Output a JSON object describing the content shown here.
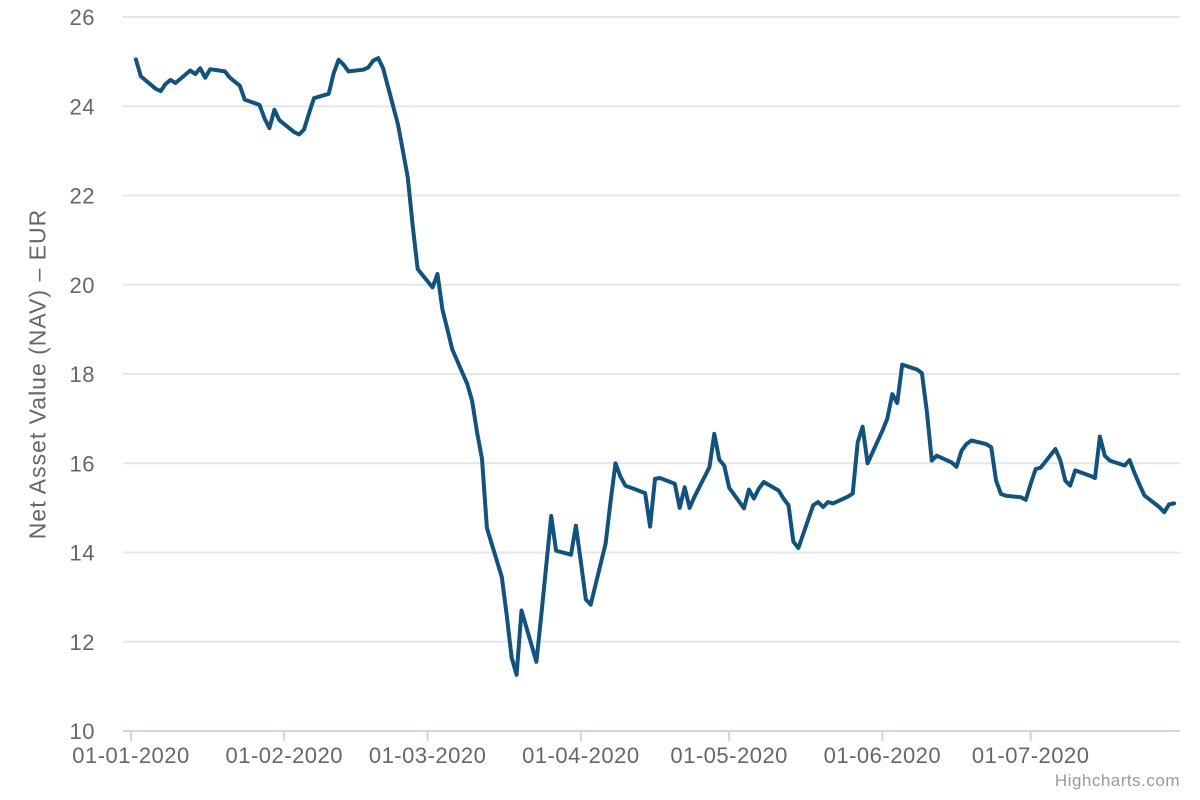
{
  "credits": {
    "label": "Highcharts.com"
  },
  "style": {
    "line_color": "#12537E",
    "grid_color": "#E6E6E6",
    "axis_line_color": "#CCD6EB",
    "label_color": "#666666",
    "credits_color": "#999999",
    "background": "#FFFFFF"
  },
  "chart_data": {
    "type": "line",
    "title": "",
    "xlabel": "",
    "ylabel": "Net Asset Value (NAV) – EUR",
    "ylim": [
      10,
      26
    ],
    "ytick_interval": 2,
    "yticks": [
      10,
      12,
      14,
      16,
      18,
      20,
      22,
      24,
      26
    ],
    "xticks": [
      {
        "date": "2020-01-01",
        "label": "01-01-2020"
      },
      {
        "date": "2020-02-01",
        "label": "01-02-2020"
      },
      {
        "date": "2020-03-01",
        "label": "01-03-2020"
      },
      {
        "date": "2020-04-01",
        "label": "01-04-2020"
      },
      {
        "date": "2020-05-01",
        "label": "01-05-2020"
      },
      {
        "date": "2020-06-01",
        "label": "01-06-2020"
      },
      {
        "date": "2020-07-01",
        "label": "01-07-2020"
      }
    ],
    "grid": true,
    "legend": false,
    "series": [
      {
        "color": "#12537E",
        "data": [
          [
            "2020-01-02",
            25.05
          ],
          [
            "2020-01-03",
            24.67
          ],
          [
            "2020-01-06",
            24.39
          ],
          [
            "2020-01-07",
            24.34
          ],
          [
            "2020-01-08",
            24.5
          ],
          [
            "2020-01-09",
            24.59
          ],
          [
            "2020-01-10",
            24.52
          ],
          [
            "2020-01-13",
            24.8
          ],
          [
            "2020-01-14",
            24.72
          ],
          [
            "2020-01-15",
            24.85
          ],
          [
            "2020-01-16",
            24.64
          ],
          [
            "2020-01-17",
            24.83
          ],
          [
            "2020-01-20",
            24.78
          ],
          [
            "2020-01-21",
            24.64
          ],
          [
            "2020-01-22",
            24.55
          ],
          [
            "2020-01-23",
            24.46
          ],
          [
            "2020-01-24",
            24.15
          ],
          [
            "2020-01-27",
            24.03
          ],
          [
            "2020-01-28",
            23.73
          ],
          [
            "2020-01-29",
            23.51
          ],
          [
            "2020-01-30",
            23.92
          ],
          [
            "2020-01-31",
            23.69
          ],
          [
            "2020-02-03",
            23.42
          ],
          [
            "2020-02-04",
            23.37
          ],
          [
            "2020-02-05",
            23.48
          ],
          [
            "2020-02-06",
            23.84
          ],
          [
            "2020-02-07",
            24.18
          ],
          [
            "2020-02-10",
            24.28
          ],
          [
            "2020-02-11",
            24.74
          ],
          [
            "2020-02-12",
            25.04
          ],
          [
            "2020-02-13",
            24.93
          ],
          [
            "2020-02-14",
            24.78
          ],
          [
            "2020-02-17",
            24.82
          ],
          [
            "2020-02-18",
            24.87
          ],
          [
            "2020-02-19",
            25.02
          ],
          [
            "2020-02-20",
            25.08
          ],
          [
            "2020-02-21",
            24.85
          ],
          [
            "2020-02-24",
            23.6
          ],
          [
            "2020-02-25",
            23.0
          ],
          [
            "2020-02-26",
            22.4
          ],
          [
            "2020-02-27",
            21.3
          ],
          [
            "2020-02-28",
            20.35
          ],
          [
            "2020-03-02",
            19.94
          ],
          [
            "2020-03-03",
            20.24
          ],
          [
            "2020-03-04",
            19.45
          ],
          [
            "2020-03-05",
            19.0
          ],
          [
            "2020-03-06",
            18.55
          ],
          [
            "2020-03-09",
            17.78
          ],
          [
            "2020-03-10",
            17.4
          ],
          [
            "2020-03-11",
            16.7
          ],
          [
            "2020-03-12",
            16.1
          ],
          [
            "2020-03-13",
            14.55
          ],
          [
            "2020-03-16",
            13.45
          ],
          [
            "2020-03-17",
            12.6
          ],
          [
            "2020-03-18",
            11.65
          ],
          [
            "2020-03-19",
            11.26
          ],
          [
            "2020-03-20",
            12.7
          ],
          [
            "2020-03-23",
            11.55
          ],
          [
            "2020-03-24",
            12.6
          ],
          [
            "2020-03-25",
            13.7
          ],
          [
            "2020-03-26",
            14.82
          ],
          [
            "2020-03-27",
            14.04
          ],
          [
            "2020-03-30",
            13.95
          ],
          [
            "2020-03-31",
            14.6
          ],
          [
            "2020-04-01",
            13.8
          ],
          [
            "2020-04-02",
            12.95
          ],
          [
            "2020-04-03",
            12.83
          ],
          [
            "2020-04-06",
            14.2
          ],
          [
            "2020-04-07",
            15.13
          ],
          [
            "2020-04-08",
            16.0
          ],
          [
            "2020-04-09",
            15.7
          ],
          [
            "2020-04-10",
            15.5
          ],
          [
            "2020-04-14",
            15.33
          ],
          [
            "2020-04-15",
            14.58
          ],
          [
            "2020-04-16",
            15.65
          ],
          [
            "2020-04-17",
            15.67
          ],
          [
            "2020-04-20",
            15.54
          ],
          [
            "2020-04-21",
            15.0
          ],
          [
            "2020-04-22",
            15.46
          ],
          [
            "2020-04-23",
            15.0
          ],
          [
            "2020-04-24",
            15.25
          ],
          [
            "2020-04-27",
            15.91
          ],
          [
            "2020-04-28",
            16.66
          ],
          [
            "2020-04-29",
            16.08
          ],
          [
            "2020-04-30",
            15.95
          ],
          [
            "2020-05-01",
            15.45
          ],
          [
            "2020-05-04",
            14.99
          ],
          [
            "2020-05-05",
            15.41
          ],
          [
            "2020-05-06",
            15.21
          ],
          [
            "2020-05-07",
            15.43
          ],
          [
            "2020-05-08",
            15.58
          ],
          [
            "2020-05-11",
            15.39
          ],
          [
            "2020-05-12",
            15.21
          ],
          [
            "2020-05-13",
            15.06
          ],
          [
            "2020-05-14",
            14.24
          ],
          [
            "2020-05-15",
            14.1
          ],
          [
            "2020-05-18",
            15.06
          ],
          [
            "2020-05-19",
            15.13
          ],
          [
            "2020-05-20",
            15.02
          ],
          [
            "2020-05-21",
            15.13
          ],
          [
            "2020-05-22",
            15.1
          ],
          [
            "2020-05-25",
            15.25
          ],
          [
            "2020-05-26",
            15.32
          ],
          [
            "2020-05-27",
            16.47
          ],
          [
            "2020-05-28",
            16.82
          ],
          [
            "2020-05-29",
            16.0
          ],
          [
            "2020-06-01",
            16.73
          ],
          [
            "2020-06-02",
            17.0
          ],
          [
            "2020-06-03",
            17.55
          ],
          [
            "2020-06-04",
            17.35
          ],
          [
            "2020-06-05",
            18.21
          ],
          [
            "2020-06-08",
            18.1
          ],
          [
            "2020-06-09",
            18.02
          ],
          [
            "2020-06-10",
            17.15
          ],
          [
            "2020-06-11",
            16.06
          ],
          [
            "2020-06-12",
            16.17
          ],
          [
            "2020-06-15",
            16.02
          ],
          [
            "2020-06-16",
            15.92
          ],
          [
            "2020-06-17",
            16.28
          ],
          [
            "2020-06-18",
            16.43
          ],
          [
            "2020-06-19",
            16.51
          ],
          [
            "2020-06-22",
            16.43
          ],
          [
            "2020-06-23",
            16.36
          ],
          [
            "2020-06-24",
            15.61
          ],
          [
            "2020-06-25",
            15.31
          ],
          [
            "2020-06-26",
            15.27
          ],
          [
            "2020-06-29",
            15.24
          ],
          [
            "2020-06-30",
            15.18
          ],
          [
            "2020-07-01",
            15.54
          ],
          [
            "2020-07-02",
            15.87
          ],
          [
            "2020-07-03",
            15.9
          ],
          [
            "2020-07-06",
            16.32
          ],
          [
            "2020-07-07",
            16.06
          ],
          [
            "2020-07-08",
            15.61
          ],
          [
            "2020-07-09",
            15.5
          ],
          [
            "2020-07-10",
            15.84
          ],
          [
            "2020-07-13",
            15.72
          ],
          [
            "2020-07-14",
            15.67
          ],
          [
            "2020-07-15",
            16.6
          ],
          [
            "2020-07-16",
            16.17
          ],
          [
            "2020-07-17",
            16.06
          ],
          [
            "2020-07-20",
            15.95
          ],
          [
            "2020-07-21",
            16.07
          ],
          [
            "2020-07-22",
            15.78
          ],
          [
            "2020-07-23",
            15.52
          ],
          [
            "2020-07-24",
            15.28
          ],
          [
            "2020-07-27",
            15.02
          ],
          [
            "2020-07-28",
            14.9
          ],
          [
            "2020-07-29",
            15.08
          ],
          [
            "2020-07-30",
            15.1
          ]
        ]
      }
    ]
  }
}
